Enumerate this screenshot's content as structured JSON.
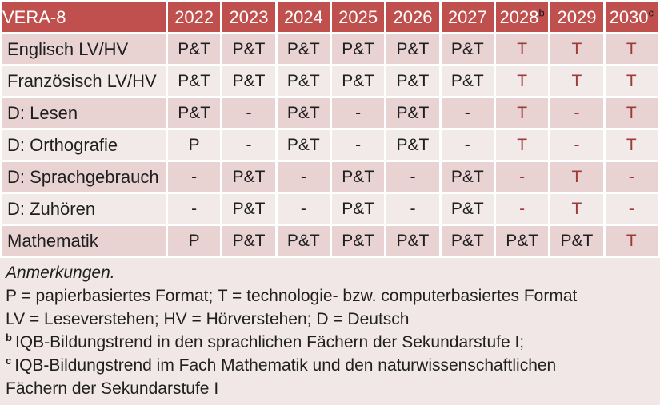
{
  "table": {
    "title": "VERA-8",
    "years": [
      {
        "label": "2022",
        "sup": ""
      },
      {
        "label": "2023",
        "sup": ""
      },
      {
        "label": "2024",
        "sup": ""
      },
      {
        "label": "2025",
        "sup": ""
      },
      {
        "label": "2026",
        "sup": ""
      },
      {
        "label": "2027",
        "sup": ""
      },
      {
        "label": "2028",
        "sup": "b"
      },
      {
        "label": "2029",
        "sup": ""
      },
      {
        "label": "2030",
        "sup": "c"
      }
    ],
    "rows": [
      {
        "label": "Englisch LV/HV",
        "cells": [
          {
            "text": "P&T",
            "red": false
          },
          {
            "text": "P&T",
            "red": false
          },
          {
            "text": "P&T",
            "red": false
          },
          {
            "text": "P&T",
            "red": false
          },
          {
            "text": "P&T",
            "red": false
          },
          {
            "text": "P&T",
            "red": false
          },
          {
            "text": "T",
            "red": true
          },
          {
            "text": "T",
            "red": true
          },
          {
            "text": "T",
            "red": true
          }
        ]
      },
      {
        "label": "Französisch LV/HV",
        "cells": [
          {
            "text": "P&T",
            "red": false
          },
          {
            "text": "P&T",
            "red": false
          },
          {
            "text": "P&T",
            "red": false
          },
          {
            "text": "P&T",
            "red": false
          },
          {
            "text": "P&T",
            "red": false
          },
          {
            "text": "P&T",
            "red": false
          },
          {
            "text": "T",
            "red": true
          },
          {
            "text": "T",
            "red": true
          },
          {
            "text": "T",
            "red": true
          }
        ]
      },
      {
        "label": "D: Lesen",
        "cells": [
          {
            "text": "P&T",
            "red": false
          },
          {
            "text": "-",
            "red": false
          },
          {
            "text": "P&T",
            "red": false
          },
          {
            "text": "-",
            "red": false
          },
          {
            "text": "P&T",
            "red": false
          },
          {
            "text": "-",
            "red": false
          },
          {
            "text": "T",
            "red": true
          },
          {
            "text": "-",
            "red": true
          },
          {
            "text": "T",
            "red": true
          }
        ]
      },
      {
        "label": "D: Orthografie",
        "cells": [
          {
            "text": "P",
            "red": false
          },
          {
            "text": "-",
            "red": false
          },
          {
            "text": "P&T",
            "red": false
          },
          {
            "text": "-",
            "red": false
          },
          {
            "text": "P&T",
            "red": false
          },
          {
            "text": "-",
            "red": false
          },
          {
            "text": "T",
            "red": true
          },
          {
            "text": "-",
            "red": true
          },
          {
            "text": "T",
            "red": true
          }
        ]
      },
      {
        "label": "D: Sprachgebrauch",
        "cells": [
          {
            "text": "-",
            "red": false
          },
          {
            "text": "P&T",
            "red": false
          },
          {
            "text": "-",
            "red": false
          },
          {
            "text": "P&T",
            "red": false
          },
          {
            "text": "-",
            "red": false
          },
          {
            "text": "P&T",
            "red": false
          },
          {
            "text": "-",
            "red": true
          },
          {
            "text": "T",
            "red": true
          },
          {
            "text": "-",
            "red": true
          }
        ]
      },
      {
        "label": "D: Zuhören",
        "cells": [
          {
            "text": "-",
            "red": false
          },
          {
            "text": "P&T",
            "red": false
          },
          {
            "text": "-",
            "red": false
          },
          {
            "text": "P&T",
            "red": false
          },
          {
            "text": "-",
            "red": false
          },
          {
            "text": "P&T",
            "red": false
          },
          {
            "text": "-",
            "red": true
          },
          {
            "text": "T",
            "red": true
          },
          {
            "text": "-",
            "red": true
          }
        ]
      },
      {
        "label": "Mathematik",
        "cells": [
          {
            "text": "P",
            "red": false
          },
          {
            "text": "P&T",
            "red": false
          },
          {
            "text": "P&T",
            "red": false
          },
          {
            "text": "P&T",
            "red": false
          },
          {
            "text": "P&T",
            "red": false
          },
          {
            "text": "P&T",
            "red": false
          },
          {
            "text": "P&T",
            "red": false
          },
          {
            "text": "P&T",
            "red": false
          },
          {
            "text": "T",
            "red": true
          }
        ]
      }
    ]
  },
  "notes": {
    "heading": "Anmerkungen.",
    "line_formats": "P = papierbasiertes Format; T = technologie- bzw. computerbasiertes Format",
    "line_abbrev": "LV = Leseverstehen; HV = Hörverstehen; D = Deutsch",
    "footnote_b_marker": "b",
    "footnote_b": "IQB-Bildungstrend in den sprachlichen Fächern der Sekundarstufe I;",
    "footnote_c_marker": "c",
    "footnote_c": "IQB-Bildungstrend im Fach Mathematik und den naturwissenschaftlichen Fächern der Sekundarstufe I"
  },
  "colors": {
    "header_bg": "#C0504D",
    "header_text": "#FFFFFF",
    "band_dark": "#E8D2D2",
    "band_light": "#F2E9E9",
    "notes_bg": "#F1E7E6",
    "text_dark": "#1F1F1F",
    "accent_red": "#9E3B38"
  }
}
